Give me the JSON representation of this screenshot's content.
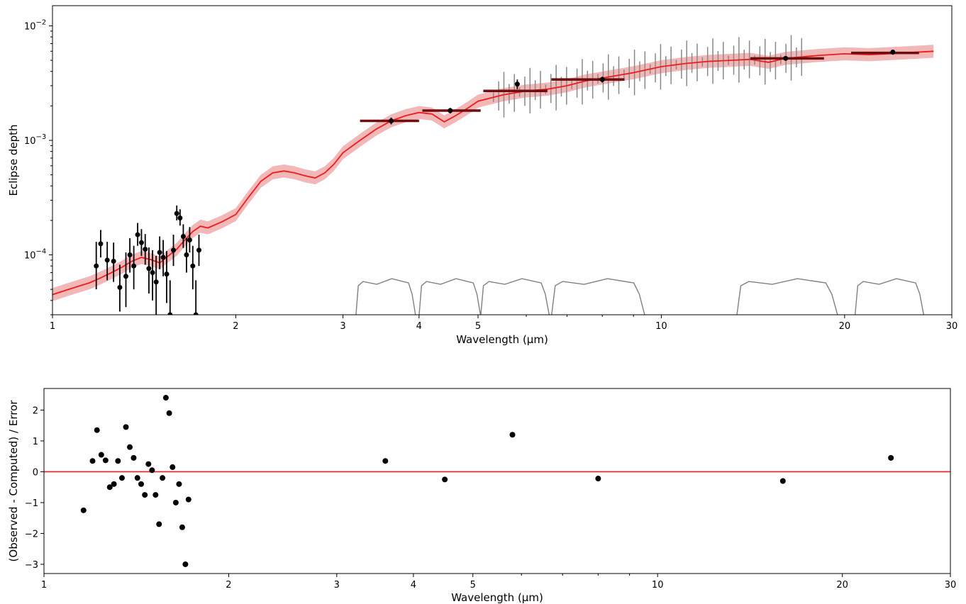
{
  "chart_data": [
    {
      "type": "scatter",
      "xlabel": "Wavelength (μm)",
      "ylabel": "Eclipse depth",
      "xscale": "log",
      "yscale": "log",
      "xlim": [
        1,
        30
      ],
      "ylim": [
        3e-05,
        0.015
      ],
      "xticks": [
        {
          "v": 1,
          "label": "1"
        },
        {
          "v": 2,
          "label": "2"
        },
        {
          "v": 3,
          "label": "3"
        },
        {
          "v": 4,
          "label": "4"
        },
        {
          "v": 5,
          "label": "5"
        },
        {
          "v": 10,
          "label": "10"
        },
        {
          "v": 20,
          "label": "20"
        },
        {
          "v": 30,
          "label": "30"
        }
      ],
      "yticks": [
        {
          "v": 0.0001,
          "base": "10",
          "exp": "−4"
        },
        {
          "v": 0.001,
          "base": "10",
          "exp": "−3"
        },
        {
          "v": 0.01,
          "base": "10",
          "exp": "−2"
        }
      ],
      "colors": {
        "model": "#ee1c1c",
        "band": "#f2b7b7",
        "filters": "#808080",
        "spec": "#888888",
        "phot": "#6e0e0e",
        "points": "#000000"
      },
      "model": [
        [
          1.0,
          4.5e-05
        ],
        [
          1.05,
          4.9e-05
        ],
        [
          1.1,
          5.3e-05
        ],
        [
          1.15,
          5.7e-05
        ],
        [
          1.2,
          6.3e-05
        ],
        [
          1.25,
          7e-05
        ],
        [
          1.3,
          7.8e-05
        ],
        [
          1.35,
          8.8e-05
        ],
        [
          1.4,
          9.5e-05
        ],
        [
          1.45,
          9.1e-05
        ],
        [
          1.5,
          8.5e-05
        ],
        [
          1.55,
          9.8e-05
        ],
        [
          1.6,
          0.000112
        ],
        [
          1.65,
          0.000135
        ],
        [
          1.7,
          0.00016
        ],
        [
          1.75,
          0.000178
        ],
        [
          1.8,
          0.000172
        ],
        [
          1.9,
          0.000195
        ],
        [
          2.0,
          0.000225
        ],
        [
          2.1,
          0.00032
        ],
        [
          2.2,
          0.00044
        ],
        [
          2.3,
          0.00052
        ],
        [
          2.4,
          0.00054
        ],
        [
          2.5,
          0.00052
        ],
        [
          2.6,
          0.00049
        ],
        [
          2.7,
          0.00047
        ],
        [
          2.8,
          0.00052
        ],
        [
          2.9,
          0.00062
        ],
        [
          3.0,
          0.00078
        ],
        [
          3.2,
          0.001
        ],
        [
          3.4,
          0.00125
        ],
        [
          3.6,
          0.00148
        ],
        [
          3.8,
          0.00164
        ],
        [
          4.0,
          0.00175
        ],
        [
          4.2,
          0.0017
        ],
        [
          4.4,
          0.00145
        ],
        [
          4.6,
          0.00165
        ],
        [
          4.8,
          0.0019
        ],
        [
          5.0,
          0.0022
        ],
        [
          5.5,
          0.0025
        ],
        [
          6.0,
          0.0027
        ],
        [
          6.5,
          0.0028
        ],
        [
          7.0,
          0.003
        ],
        [
          7.5,
          0.0033
        ],
        [
          8.0,
          0.0035
        ],
        [
          9.0,
          0.0039
        ],
        [
          10.0,
          0.0044
        ],
        [
          11.0,
          0.0047
        ],
        [
          12.0,
          0.0049
        ],
        [
          13.0,
          0.005
        ],
        [
          14.0,
          0.0051
        ],
        [
          15.0,
          0.0048
        ],
        [
          16.0,
          0.0052
        ],
        [
          18.0,
          0.0055
        ],
        [
          20.0,
          0.0057
        ],
        [
          22.0,
          0.0056
        ],
        [
          25.0,
          0.0058
        ],
        [
          28.0,
          0.006
        ]
      ],
      "points": [
        [
          1.18,
          8e-05,
          5e-05,
          3e-05
        ],
        [
          1.2,
          0.000125,
          4e-05,
          3e-05
        ],
        [
          1.23,
          9e-05,
          4e-05,
          3e-05
        ],
        [
          1.26,
          8.8e-05,
          4e-05,
          3e-05
        ],
        [
          1.29,
          5.2e-05,
          3e-05,
          2e-05
        ],
        [
          1.32,
          6.5e-05,
          4e-05,
          3e-05
        ],
        [
          1.34,
          0.0001,
          4e-05,
          3e-05
        ],
        [
          1.36,
          8e-05,
          4e-05,
          3e-05
        ],
        [
          1.38,
          0.00015,
          4e-05,
          3e-05
        ],
        [
          1.4,
          0.000128,
          4e-05,
          3e-05
        ],
        [
          1.42,
          0.000112,
          4e-05,
          3e-05
        ],
        [
          1.44,
          7.6e-05,
          4e-05,
          3e-05
        ],
        [
          1.46,
          7e-05,
          4e-05,
          3e-05
        ],
        [
          1.48,
          5.8e-05,
          4e-05,
          3e-05
        ],
        [
          1.5,
          0.000105,
          4e-05,
          3e-05
        ],
        [
          1.52,
          9.5e-05,
          4e-05,
          3e-05
        ],
        [
          1.54,
          6.8e-05,
          4e-05,
          3e-05
        ],
        [
          1.56,
          3e-05,
          3e-05,
          2e-05
        ],
        [
          1.58,
          0.00011,
          4e-05,
          3e-05
        ],
        [
          1.6,
          0.00023,
          4e-05,
          3e-05
        ],
        [
          1.62,
          0.00021,
          4e-05,
          3e-05
        ],
        [
          1.64,
          0.000145,
          4e-05,
          3e-05
        ],
        [
          1.66,
          0.0001,
          4e-05,
          3e-05
        ],
        [
          1.68,
          0.000135,
          4e-05,
          3e-05
        ],
        [
          1.7,
          8e-05,
          4e-05,
          3e-05
        ],
        [
          1.72,
          3e-05,
          3e-05,
          2e-05
        ],
        [
          1.74,
          0.00011,
          4e-05,
          3e-05
        ],
        [
          3.6,
          0.00148,
          0.0001,
          0.0001
        ],
        [
          4.5,
          0.00182,
          0.0001,
          0.0001
        ],
        [
          5.8,
          0.0031,
          0.0003,
          0.0003
        ],
        [
          8.0,
          0.0034,
          0.0002,
          0.0002
        ],
        [
          16.0,
          0.0052,
          0.0002,
          0.0002
        ],
        [
          24.0,
          0.0059,
          0.0003,
          0.0003
        ]
      ],
      "photometry": [
        [
          3.2,
          4.0,
          0.00148
        ],
        [
          4.05,
          5.05,
          0.00182
        ],
        [
          5.1,
          6.5,
          0.0027
        ],
        [
          6.6,
          8.7,
          0.0034
        ],
        [
          14.0,
          18.5,
          0.0052
        ],
        [
          20.5,
          26.5,
          0.0058
        ]
      ],
      "filters": [
        {
          "lo": 3.15,
          "hi": 3.95
        },
        {
          "lo": 4.0,
          "hi": 5.05
        },
        {
          "lo": 5.05,
          "hi": 6.55
        },
        {
          "lo": 6.6,
          "hi": 9.4
        },
        {
          "lo": 13.3,
          "hi": 19.5
        },
        {
          "lo": 20.8,
          "hi": 27.0
        }
      ]
    },
    {
      "type": "scatter",
      "xlabel": "Wavelength (μm)",
      "ylabel": "(Observed - Computed) / Error",
      "xscale": "log",
      "xlim": [
        1,
        30
      ],
      "ylim": [
        -3.3,
        2.7
      ],
      "xticks": [
        {
          "v": 1,
          "label": "1"
        },
        {
          "v": 2,
          "label": "2"
        },
        {
          "v": 3,
          "label": "3"
        },
        {
          "v": 4,
          "label": "4"
        },
        {
          "v": 5,
          "label": "5"
        },
        {
          "v": 10,
          "label": "10"
        },
        {
          "v": 20,
          "label": "20"
        },
        {
          "v": 30,
          "label": "30"
        }
      ],
      "yticks": [
        {
          "v": 2,
          "label": "2"
        },
        {
          "v": 1,
          "label": "1"
        },
        {
          "v": 0,
          "label": "0"
        },
        {
          "v": -1,
          "label": "−1"
        },
        {
          "v": -2,
          "label": "−2"
        },
        {
          "v": -3,
          "label": "−3"
        }
      ],
      "reference_line": 0,
      "points": [
        [
          1.16,
          -1.25
        ],
        [
          1.2,
          0.35
        ],
        [
          1.22,
          1.35
        ],
        [
          1.24,
          0.55
        ],
        [
          1.26,
          0.37
        ],
        [
          1.28,
          -0.5
        ],
        [
          1.3,
          -0.4
        ],
        [
          1.32,
          0.35
        ],
        [
          1.34,
          -0.2
        ],
        [
          1.36,
          1.45
        ],
        [
          1.38,
          0.8
        ],
        [
          1.4,
          0.45
        ],
        [
          1.42,
          -0.2
        ],
        [
          1.44,
          -0.4
        ],
        [
          1.46,
          -0.75
        ],
        [
          1.48,
          0.25
        ],
        [
          1.5,
          0.05
        ],
        [
          1.52,
          -0.75
        ],
        [
          1.54,
          -1.7
        ],
        [
          1.56,
          -0.2
        ],
        [
          1.58,
          2.4
        ],
        [
          1.6,
          1.9
        ],
        [
          1.62,
          0.15
        ],
        [
          1.64,
          -1.0
        ],
        [
          1.66,
          -0.4
        ],
        [
          1.68,
          -1.8
        ],
        [
          1.7,
          -3.0
        ],
        [
          1.72,
          -0.9
        ],
        [
          3.6,
          0.35
        ],
        [
          4.5,
          -0.25
        ],
        [
          5.8,
          1.2
        ],
        [
          8.0,
          -0.22
        ],
        [
          16.0,
          -0.3
        ],
        [
          24.0,
          0.45
        ]
      ]
    }
  ]
}
